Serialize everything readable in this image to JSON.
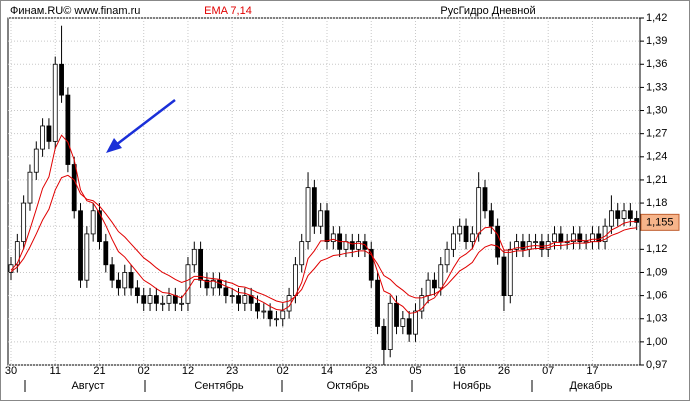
{
  "chart_data": {
    "type": "candlestick",
    "header": {
      "source": "Финам.RU©  www.finam.ru",
      "indicator": "EMA 7,14",
      "instrument": "РусГидро Дневной"
    },
    "categories": [
      "30",
      null,
      null,
      null,
      null,
      null,
      null,
      "11",
      null,
      null,
      null,
      null,
      null,
      null,
      "21",
      null,
      null,
      null,
      null,
      null,
      null,
      "02",
      null,
      null,
      null,
      null,
      null,
      null,
      "12",
      null,
      null,
      null,
      null,
      null,
      null,
      "23",
      null,
      null,
      null,
      null,
      null,
      null,
      null,
      "02",
      null,
      null,
      null,
      null,
      null,
      null,
      "14",
      null,
      null,
      null,
      null,
      null,
      null,
      "23",
      null,
      null,
      null,
      null,
      null,
      null,
      "05",
      null,
      null,
      null,
      null,
      null,
      null,
      "16",
      null,
      null,
      null,
      null,
      null,
      null,
      "26",
      null,
      null,
      null,
      null,
      null,
      null,
      "07",
      null,
      null,
      null,
      null,
      null,
      null,
      "17",
      null,
      null,
      null,
      null,
      null,
      null,
      null
    ],
    "months": [
      "Август",
      "Сентябрь",
      "Октябрь",
      "Ноябрь",
      "Декабрь"
    ],
    "open": [
      1.09,
      1.1,
      1.13,
      1.18,
      1.22,
      1.25,
      1.28,
      1.26,
      1.36,
      1.32,
      1.23,
      1.17,
      1.08,
      1.14,
      1.17,
      1.13,
      1.1,
      1.08,
      1.07,
      1.09,
      1.07,
      1.06,
      1.05,
      1.06,
      1.05,
      1.05,
      1.06,
      1.05,
      1.05,
      1.1,
      1.12,
      1.08,
      1.07,
      1.08,
      1.07,
      1.06,
      1.06,
      1.05,
      1.06,
      1.05,
      1.04,
      1.04,
      1.03,
      1.03,
      1.04,
      1.06,
      1.1,
      1.13,
      1.2,
      1.15,
      1.17,
      1.13,
      1.14,
      1.12,
      1.13,
      1.12,
      1.13,
      1.12,
      1.08,
      1.02,
      0.99,
      1.05,
      1.02,
      1.03,
      1.01,
      1.04,
      1.06,
      1.08,
      1.07,
      1.1,
      1.12,
      1.14,
      1.15,
      1.13,
      1.14,
      1.2,
      1.17,
      1.15,
      1.11,
      1.06,
      1.12,
      1.13,
      1.12,
      1.13,
      1.13,
      1.12,
      1.13,
      1.14,
      1.13,
      1.13,
      1.14,
      1.13,
      1.13,
      1.14,
      1.13,
      1.15,
      1.17,
      1.16,
      1.17,
      1.16
    ],
    "high": [
      1.11,
      1.14,
      1.19,
      1.23,
      1.26,
      1.29,
      1.29,
      1.37,
      1.41,
      1.33,
      1.24,
      1.18,
      1.15,
      1.18,
      1.18,
      1.14,
      1.11,
      1.09,
      1.1,
      1.1,
      1.08,
      1.07,
      1.07,
      1.07,
      1.06,
      1.07,
      1.07,
      1.06,
      1.11,
      1.13,
      1.13,
      1.09,
      1.09,
      1.09,
      1.08,
      1.07,
      1.07,
      1.07,
      1.07,
      1.06,
      1.05,
      1.05,
      1.04,
      1.05,
      1.07,
      1.11,
      1.14,
      1.22,
      1.21,
      1.18,
      1.18,
      1.15,
      1.15,
      1.14,
      1.14,
      1.14,
      1.14,
      1.13,
      1.09,
      1.03,
      1.06,
      1.06,
      1.04,
      1.04,
      1.05,
      1.07,
      1.09,
      1.09,
      1.11,
      1.13,
      1.15,
      1.16,
      1.16,
      1.15,
      1.22,
      1.21,
      1.18,
      1.16,
      1.12,
      1.13,
      1.14,
      1.14,
      1.14,
      1.14,
      1.14,
      1.14,
      1.15,
      1.15,
      1.14,
      1.15,
      1.15,
      1.14,
      1.15,
      1.15,
      1.16,
      1.19,
      1.18,
      1.18,
      1.18,
      1.17
    ],
    "low": [
      1.08,
      1.09,
      1.12,
      1.17,
      1.21,
      1.24,
      1.25,
      1.25,
      1.31,
      1.22,
      1.16,
      1.07,
      1.07,
      1.13,
      1.12,
      1.09,
      1.07,
      1.06,
      1.06,
      1.06,
      1.05,
      1.04,
      1.04,
      1.04,
      1.04,
      1.04,
      1.04,
      1.04,
      1.04,
      1.09,
      1.07,
      1.06,
      1.06,
      1.06,
      1.05,
      1.05,
      1.04,
      1.04,
      1.04,
      1.03,
      1.03,
      1.02,
      1.02,
      1.02,
      1.03,
      1.05,
      1.09,
      1.12,
      1.14,
      1.14,
      1.12,
      1.12,
      1.11,
      1.11,
      1.11,
      1.11,
      1.11,
      1.07,
      1.01,
      0.97,
      0.98,
      1.01,
      1.01,
      1.0,
      1.0,
      1.03,
      1.05,
      1.06,
      1.06,
      1.09,
      1.11,
      1.13,
      1.12,
      1.12,
      1.13,
      1.16,
      1.14,
      1.1,
      1.04,
      1.05,
      1.11,
      1.11,
      1.11,
      1.12,
      1.11,
      1.11,
      1.12,
      1.12,
      1.12,
      1.12,
      1.12,
      1.12,
      1.12,
      1.12,
      1.12,
      1.14,
      1.15,
      1.15,
      1.15,
      1.145
    ],
    "close": [
      1.1,
      1.13,
      1.18,
      1.22,
      1.25,
      1.28,
      1.26,
      1.36,
      1.32,
      1.23,
      1.17,
      1.08,
      1.14,
      1.17,
      1.13,
      1.1,
      1.08,
      1.07,
      1.09,
      1.07,
      1.06,
      1.05,
      1.06,
      1.05,
      1.05,
      1.06,
      1.05,
      1.05,
      1.1,
      1.12,
      1.08,
      1.07,
      1.08,
      1.07,
      1.06,
      1.06,
      1.05,
      1.06,
      1.05,
      1.04,
      1.04,
      1.03,
      1.03,
      1.04,
      1.06,
      1.1,
      1.13,
      1.2,
      1.15,
      1.17,
      1.13,
      1.14,
      1.12,
      1.13,
      1.12,
      1.13,
      1.12,
      1.08,
      1.02,
      0.99,
      1.05,
      1.02,
      1.03,
      1.01,
      1.04,
      1.06,
      1.08,
      1.07,
      1.1,
      1.12,
      1.14,
      1.15,
      1.13,
      1.14,
      1.2,
      1.17,
      1.15,
      1.11,
      1.06,
      1.12,
      1.13,
      1.12,
      1.13,
      1.13,
      1.12,
      1.13,
      1.14,
      1.13,
      1.13,
      1.14,
      1.13,
      1.13,
      1.14,
      1.13,
      1.15,
      1.17,
      1.16,
      1.17,
      1.16,
      1.155
    ],
    "ema": [
      {
        "color": "#e00000",
        "values": [
          1.093,
          1.102,
          1.121,
          1.146,
          1.172,
          1.199,
          1.214,
          1.251,
          1.268,
          1.259,
          1.236,
          1.197,
          1.183,
          1.18,
          1.167,
          1.151,
          1.133,
          1.117,
          1.11,
          1.1,
          1.09,
          1.08,
          1.075,
          1.069,
          1.064,
          1.063,
          1.06,
          1.057,
          1.068,
          1.081,
          1.081,
          1.078,
          1.079,
          1.076,
          1.072,
          1.069,
          1.064,
          1.063,
          1.06,
          1.055,
          1.051,
          1.046,
          1.042,
          1.041,
          1.046,
          1.06,
          1.077,
          1.108,
          1.118,
          1.131,
          1.131,
          1.133,
          1.13,
          1.13,
          1.127,
          1.128,
          1.126,
          1.115,
          1.091,
          1.066,
          1.062,
          1.051,
          1.046,
          1.037,
          1.038,
          1.043,
          1.053,
          1.057,
          1.068,
          1.081,
          1.096,
          1.109,
          1.114,
          1.121,
          1.141,
          1.148,
          1.149,
          1.139,
          1.119,
          1.119,
          1.122,
          1.122,
          1.124,
          1.125,
          1.124,
          1.125,
          1.129,
          1.129,
          1.13,
          1.132,
          1.132,
          1.131,
          1.133,
          1.133,
          1.137,
          1.145,
          1.149,
          1.154,
          1.156,
          1.156
        ]
      },
      {
        "color": "#e00000",
        "values": [
          1.091,
          1.097,
          1.108,
          1.123,
          1.14,
          1.158,
          1.172,
          1.197,
          1.213,
          1.216,
          1.21,
          1.192,
          1.185,
          1.183,
          1.176,
          1.166,
          1.155,
          1.143,
          1.136,
          1.127,
          1.118,
          1.109,
          1.103,
          1.096,
          1.09,
          1.086,
          1.081,
          1.077,
          1.08,
          1.085,
          1.085,
          1.083,
          1.082,
          1.081,
          1.078,
          1.076,
          1.072,
          1.071,
          1.068,
          1.064,
          1.061,
          1.057,
          1.053,
          1.051,
          1.053,
          1.059,
          1.068,
          1.086,
          1.095,
          1.105,
          1.108,
          1.112,
          1.113,
          1.115,
          1.116,
          1.118,
          1.118,
          1.113,
          1.101,
          1.086,
          1.081,
          1.073,
          1.067,
          1.06,
          1.057,
          1.057,
          1.06,
          1.062,
          1.067,
          1.074,
          1.083,
          1.092,
          1.097,
          1.103,
          1.116,
          1.123,
          1.126,
          1.124,
          1.116,
          1.116,
          1.118,
          1.118,
          1.12,
          1.121,
          1.121,
          1.122,
          1.125,
          1.125,
          1.126,
          1.128,
          1.128,
          1.128,
          1.13,
          1.13,
          1.133,
          1.138,
          1.141,
          1.145,
          1.147,
          1.148
        ]
      }
    ],
    "last_price": {
      "value": 1.155,
      "label": "1,155"
    },
    "ylim": [
      0.97,
      1.42
    ],
    "yticks": [
      {
        "value": 1.42,
        "label": "1,42"
      },
      {
        "value": 1.39,
        "label": "1,39"
      },
      {
        "value": 1.36,
        "label": "1,36"
      },
      {
        "value": 1.33,
        "label": "1,33"
      },
      {
        "value": 1.3,
        "label": "1,30"
      },
      {
        "value": 1.27,
        "label": "1,27"
      },
      {
        "value": 1.24,
        "label": "1,24"
      },
      {
        "value": 1.21,
        "label": "1,21"
      },
      {
        "value": 1.18,
        "label": "1,18"
      },
      {
        "value": 1.15,
        "label": "1,15"
      },
      {
        "value": 1.12,
        "label": "1,12"
      },
      {
        "value": 1.09,
        "label": "1,09"
      },
      {
        "value": 1.06,
        "label": "1,06"
      },
      {
        "value": 1.03,
        "label": "1,03"
      },
      {
        "value": 1.0,
        "label": "1,00"
      },
      {
        "value": 0.97,
        "label": "0,97"
      }
    ],
    "grid": true,
    "up_color": "#ffffff",
    "down_color": "#000000"
  }
}
